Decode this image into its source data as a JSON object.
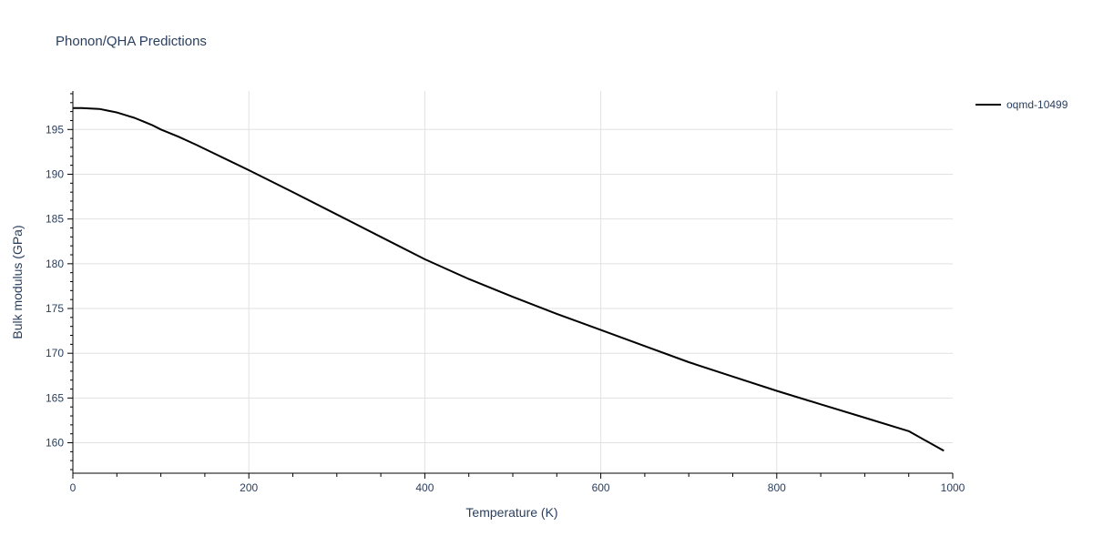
{
  "chart_data": {
    "type": "line",
    "title": "Phonon/QHA Predictions",
    "xlabel": "Temperature (K)",
    "ylabel": "Bulk modulus (GPa)",
    "xlim": [
      0,
      1000
    ],
    "ylim": [
      156.6,
      199.3
    ],
    "xticks": [
      0,
      200,
      400,
      600,
      800,
      1000
    ],
    "yticks": [
      160,
      165,
      170,
      175,
      180,
      185,
      190,
      195
    ],
    "grid": true,
    "legend_position": "top-right",
    "series": [
      {
        "name": "oqmd-10499",
        "color": "#000000",
        "x": [
          0,
          10,
          20,
          30,
          40,
          50,
          60,
          70,
          80,
          90,
          100,
          120,
          140,
          160,
          180,
          200,
          250,
          300,
          350,
          400,
          450,
          500,
          550,
          600,
          650,
          700,
          750,
          800,
          850,
          900,
          950,
          990
        ],
        "y": [
          197.4,
          197.4,
          197.35,
          197.3,
          197.1,
          196.9,
          196.6,
          196.3,
          195.9,
          195.5,
          195.0,
          194.2,
          193.3,
          192.35,
          191.4,
          190.45,
          188.0,
          185.5,
          183.0,
          180.5,
          178.3,
          176.3,
          174.4,
          172.6,
          170.8,
          169.0,
          167.4,
          165.8,
          164.3,
          162.8,
          161.3,
          159.1
        ]
      }
    ]
  }
}
